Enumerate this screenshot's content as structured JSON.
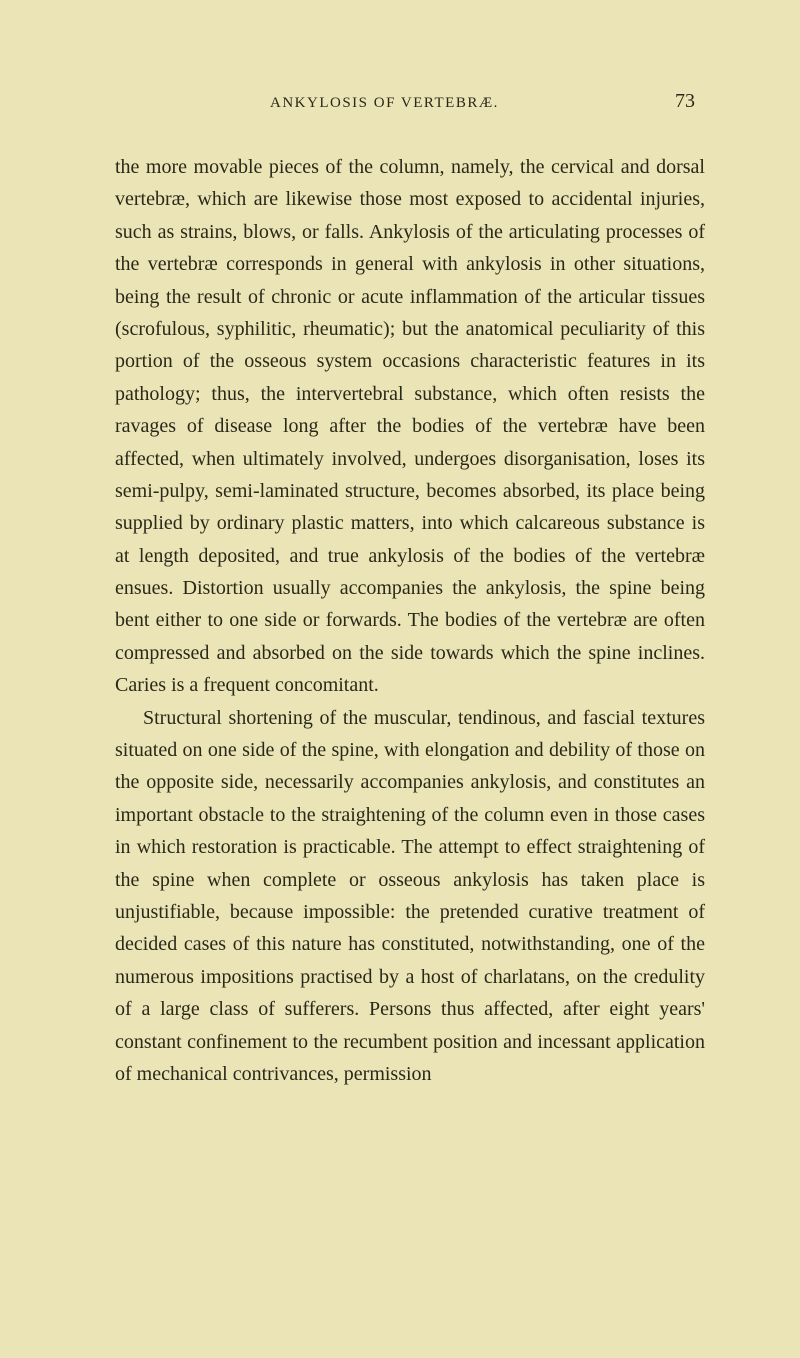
{
  "page": {
    "header": {
      "title": "ANKYLOSIS OF VERTEBRÆ.",
      "page_number": "73"
    },
    "paragraphs": [
      "the more movable pieces of the column, namely, the cervical and dorsal vertebræ, which are likewise those most exposed to accidental injuries, such as strains, blows, or falls. Ankylosis of the articulating processes of the vertebræ corresponds in general with ankylosis in other situations, being the result of chronic or acute inflammation of the articular tissues (scrofulous, syphilitic, rheumatic); but the anatomical peculiarity of this portion of the osseous system occasions characteristic features in its pathology; thus, the intervertebral substance, which often resists the ravages of disease long after the bodies of the vertebræ have been affected, when ultimately involved, undergoes disorganisation, loses its semi-pulpy, semi-laminated structure, becomes absorbed, its place being supplied by ordinary plastic matters, into which calcareous substance is at length deposited, and true ankylosis of the bodies of the vertebræ ensues. Distortion usually accompanies the ankylosis, the spine being bent either to one side or forwards. The bodies of the vertebræ are often compressed and absorbed on the side towards which the spine inclines. Caries is a frequent concomitant.",
      "Structural shortening of the muscular, tendinous, and fascial textures situated on one side of the spine, with elongation and debility of those on the opposite side, necessarily accompanies ankylosis, and constitutes an important obstacle to the straightening of the column even in those cases in which restoration is practicable. The attempt to effect straightening of the spine when complete or osseous ankylosis has taken place is unjustifiable, because impossible: the pretended curative treatment of decided cases of this nature has constituted, notwithstanding, one of the numerous impositions practised by a host of charlatans, on the credulity of a large class of sufferers. Persons thus affected, after eight years' constant confinement to the recumbent position and incessant application of mechanical contrivances, permission"
    ]
  },
  "colors": {
    "background": "#eae4b6",
    "text": "#2a2818"
  },
  "typography": {
    "body_fontsize": 20,
    "header_fontsize": 15,
    "pagenum_fontsize": 20,
    "line_height": 1.62
  }
}
